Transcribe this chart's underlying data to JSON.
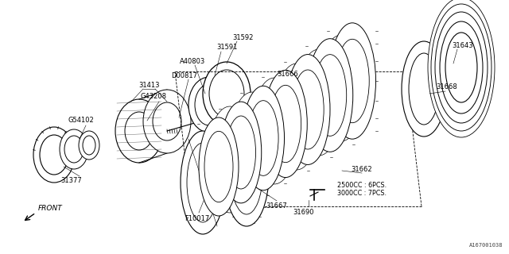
{
  "bg_color": "#ffffff",
  "line_color": "#000000",
  "fig_width": 6.4,
  "fig_height": 3.2,
  "dpi": 100,
  "watermark": "A167001038",
  "front_label": "FRONT",
  "note_2500": "2500CC : 6PCS.",
  "note_3000": "3000CC : 7PCS."
}
